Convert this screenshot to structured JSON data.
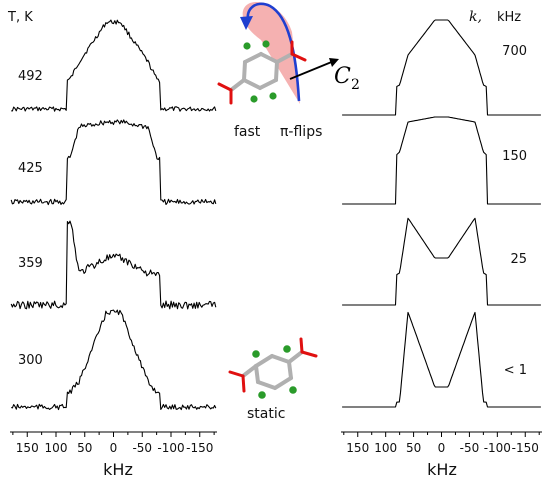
{
  "chart_data": [
    {
      "type": "line",
      "title": "",
      "header": "T, K",
      "xlabel": "kHz",
      "xlim": [
        180,
        -180
      ],
      "xticks": [
        150,
        100,
        50,
        0,
        -50,
        -100,
        -150
      ],
      "tick_labels": [
        "150",
        "100",
        "50",
        "0",
        "-50",
        "-100",
        "-150"
      ],
      "series": [
        {
          "name": "492",
          "values": [
            0.08,
            0.38,
            0.55,
            0.95,
            0.95,
            0.55,
            0.38,
            0.08
          ]
        },
        {
          "name": "425",
          "values": [
            0.1,
            0.55,
            0.85,
            0.9,
            0.9,
            0.85,
            0.55,
            0.1
          ]
        },
        {
          "name": "359",
          "values": [
            0.08,
            0.38,
            0.4,
            0.55,
            0.55,
            0.4,
            0.95,
            0.1
          ]
        },
        {
          "name": "300",
          "values": [
            0.05,
            0.2,
            0.3,
            1.0,
            1.0,
            0.3,
            0.2,
            0.05
          ]
        }
      ]
    },
    {
      "type": "line",
      "title": "",
      "header": "kHz",
      "header_italic": "k,",
      "xlabel": "kHz",
      "xlim": [
        180,
        -180
      ],
      "xticks": [
        150,
        100,
        50,
        0,
        -50,
        -100,
        -150
      ],
      "tick_labels": [
        "150",
        "100",
        "50",
        "0",
        "-50",
        "-100",
        "-150"
      ],
      "series": [
        {
          "name": "700",
          "values": [
            0.05,
            0.35,
            0.65,
            1.0,
            1.0,
            0.65,
            0.35,
            0.05
          ]
        },
        {
          "name": "150",
          "values": [
            0.08,
            0.6,
            0.9,
            0.95,
            0.95,
            0.9,
            0.6,
            0.08
          ]
        },
        {
          "name": "25",
          "values": [
            0.08,
            0.4,
            0.95,
            0.55,
            0.55,
            0.95,
            0.4,
            0.08
          ]
        },
        {
          "name": "< 1",
          "values": [
            0.05,
            0.1,
            1.0,
            0.25,
            0.25,
            1.0,
            0.1,
            0.05
          ]
        }
      ]
    }
  ],
  "annotations": {
    "c2_symbol": "C",
    "c2_subscript": "2",
    "fast_label": "fast",
    "flip_label": "π-flips",
    "static_label": "static"
  },
  "colors": {
    "spectrum": "#000000",
    "oxygen": "#e01010",
    "carbon": "#b0b0b0",
    "hydrogen": "#2a9b2a",
    "arrow": "#1f3fd0",
    "cone": "#f3a3a3"
  }
}
